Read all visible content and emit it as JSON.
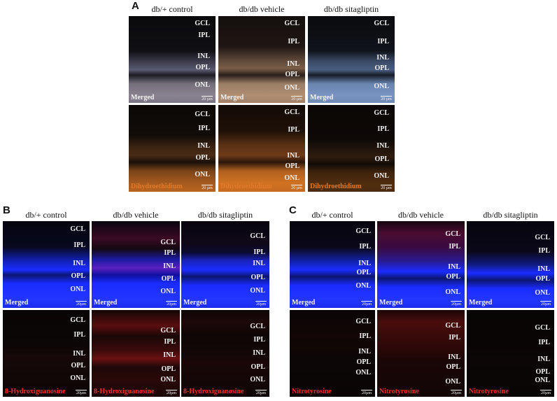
{
  "panel_labels": {
    "a": "A",
    "b": "B",
    "c": "C"
  },
  "columns": {
    "a": [
      "db/+ control",
      "db/db vehicle",
      "db/db sitagliptin"
    ],
    "b": [
      "db/+ control",
      "db/db vehicle",
      "db/db sitagliptin"
    ],
    "c": [
      "db/+ control",
      "db/db vehicle",
      "db/db sitagliptin"
    ]
  },
  "stain_labels": {
    "merged": "Merged",
    "dhe": "Dihydroethidium",
    "ohdg": "8-Hydroxiguanosine",
    "nitro": "Nitrotyrosine"
  },
  "layers": {
    "gcl": "GCL",
    "ipl": "IPL",
    "inl": "INL",
    "opl": "OPL",
    "onl": "ONL"
  },
  "scale_bars": {
    "a": "20 µm",
    "bc": "20µm"
  },
  "colors": {
    "dhe_orange": "#c86a1e",
    "nuclear_blue": "#1a2cff",
    "red_signal": "#d11818",
    "stain_text_orange": "#e07a2a",
    "stain_text_red": "#ff2a2a"
  }
}
